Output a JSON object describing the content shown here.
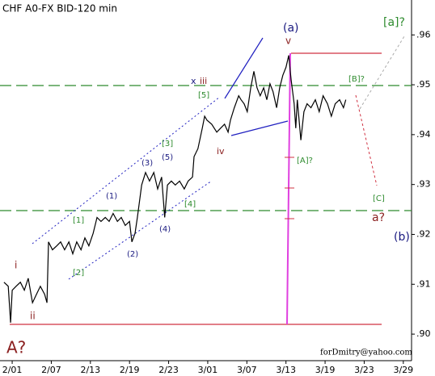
{
  "chart_data": {
    "type": "line",
    "title": "CHF A0-FX BID-120 min",
    "xlim": [
      -0.27,
      10.19
    ],
    "ylim": [
      0.895,
      0.967
    ],
    "xticks": [
      {
        "value": 0,
        "label": "2/01"
      },
      {
        "value": 1,
        "label": "2/07"
      },
      {
        "value": 2,
        "label": "2/13"
      },
      {
        "value": 3,
        "label": "2/19"
      },
      {
        "value": 4,
        "label": "2/23"
      },
      {
        "value": 5,
        "label": "3/01"
      },
      {
        "value": 6,
        "label": "3/07"
      },
      {
        "value": 7,
        "label": "3/13"
      },
      {
        "value": 8,
        "label": "3/19"
      },
      {
        "value": 9,
        "label": "3/23"
      },
      {
        "value": 10,
        "label": "3/29"
      }
    ],
    "yticks": [
      {
        "value": 0.9,
        "label": ".90"
      },
      {
        "value": 0.91,
        "label": ".91"
      },
      {
        "value": 0.92,
        "label": ".92"
      },
      {
        "value": 0.93,
        "label": ".93"
      },
      {
        "value": 0.94,
        "label": ".94"
      },
      {
        "value": 0.95,
        "label": ".95"
      },
      {
        "value": 0.96,
        "label": ".96"
      }
    ],
    "series": [
      {
        "color": "#000000",
        "x": [
          -0.21,
          -0.1,
          -0.04,
          0,
          0.1,
          0.21,
          0.31,
          0.41,
          0.52,
          0.62,
          0.72,
          0.83,
          0.89,
          0.93,
          1.03,
          1.14,
          1.24,
          1.34,
          1.45,
          1.55,
          1.65,
          1.76,
          1.86,
          1.96,
          2.07,
          2.17,
          2.27,
          2.38,
          2.48,
          2.58,
          2.69,
          2.79,
          2.89,
          3.0,
          3.06,
          3.14,
          3.2,
          3.31,
          3.41,
          3.51,
          3.62,
          3.72,
          3.82,
          3.9,
          3.97,
          4.07,
          4.17,
          4.28,
          4.4,
          4.5,
          4.61,
          4.65,
          4.75,
          4.86,
          4.92,
          4.98,
          5.1,
          5.23,
          5.33,
          5.43,
          5.52,
          5.58,
          5.68,
          5.79,
          5.85,
          5.93,
          6.01,
          6.1,
          6.18,
          6.26,
          6.34,
          6.43,
          6.51,
          6.59,
          6.67,
          6.76,
          6.84,
          6.92,
          7.0,
          7.07,
          7.13,
          7.21,
          7.25,
          7.29,
          7.38,
          7.46,
          7.54,
          7.64,
          7.75,
          7.85,
          7.95,
          8.06,
          8.16,
          8.26,
          8.37,
          8.47,
          8.53
        ],
        "values": [
          0.9104,
          0.9096,
          0.9023,
          0.9088,
          0.9096,
          0.9104,
          0.9088,
          0.9112,
          0.9063,
          0.908,
          0.9096,
          0.908,
          0.9063,
          0.9185,
          0.9169,
          0.9177,
          0.9185,
          0.9169,
          0.9185,
          0.9161,
          0.9185,
          0.9169,
          0.9193,
          0.9177,
          0.9202,
          0.9234,
          0.9226,
          0.9234,
          0.9226,
          0.9242,
          0.9226,
          0.9234,
          0.9218,
          0.9226,
          0.9185,
          0.9202,
          0.9234,
          0.9299,
          0.9324,
          0.9307,
          0.9324,
          0.9291,
          0.9315,
          0.9234,
          0.9299,
          0.9307,
          0.9299,
          0.9307,
          0.9291,
          0.9307,
          0.9315,
          0.9356,
          0.9372,
          0.9413,
          0.9437,
          0.9429,
          0.9421,
          0.9405,
          0.9413,
          0.9421,
          0.9405,
          0.9429,
          0.9454,
          0.9478,
          0.947,
          0.9462,
          0.9446,
          0.9494,
          0.9527,
          0.9494,
          0.9478,
          0.9494,
          0.947,
          0.9502,
          0.9486,
          0.9454,
          0.9494,
          0.9519,
          0.9535,
          0.9559,
          0.9511,
          0.9462,
          0.9413,
          0.947,
          0.9389,
          0.9446,
          0.9462,
          0.9454,
          0.947,
          0.9446,
          0.9478,
          0.9462,
          0.9437,
          0.9462,
          0.947,
          0.9454,
          0.947
        ]
      }
    ],
    "annotations": [
      "(a)",
      "v",
      "[a]?",
      "[B]?",
      "x",
      "iii",
      "[5]",
      "iv",
      "[A]?",
      "[3]",
      "(5)",
      "(3)",
      "(1)",
      "[4]",
      "[1]",
      "(4)",
      "(2)",
      "[2]",
      "i",
      "ii",
      "A?",
      "[C]",
      "a?",
      "(b)",
      "forDmitry@yahoo.com"
    ]
  }
}
